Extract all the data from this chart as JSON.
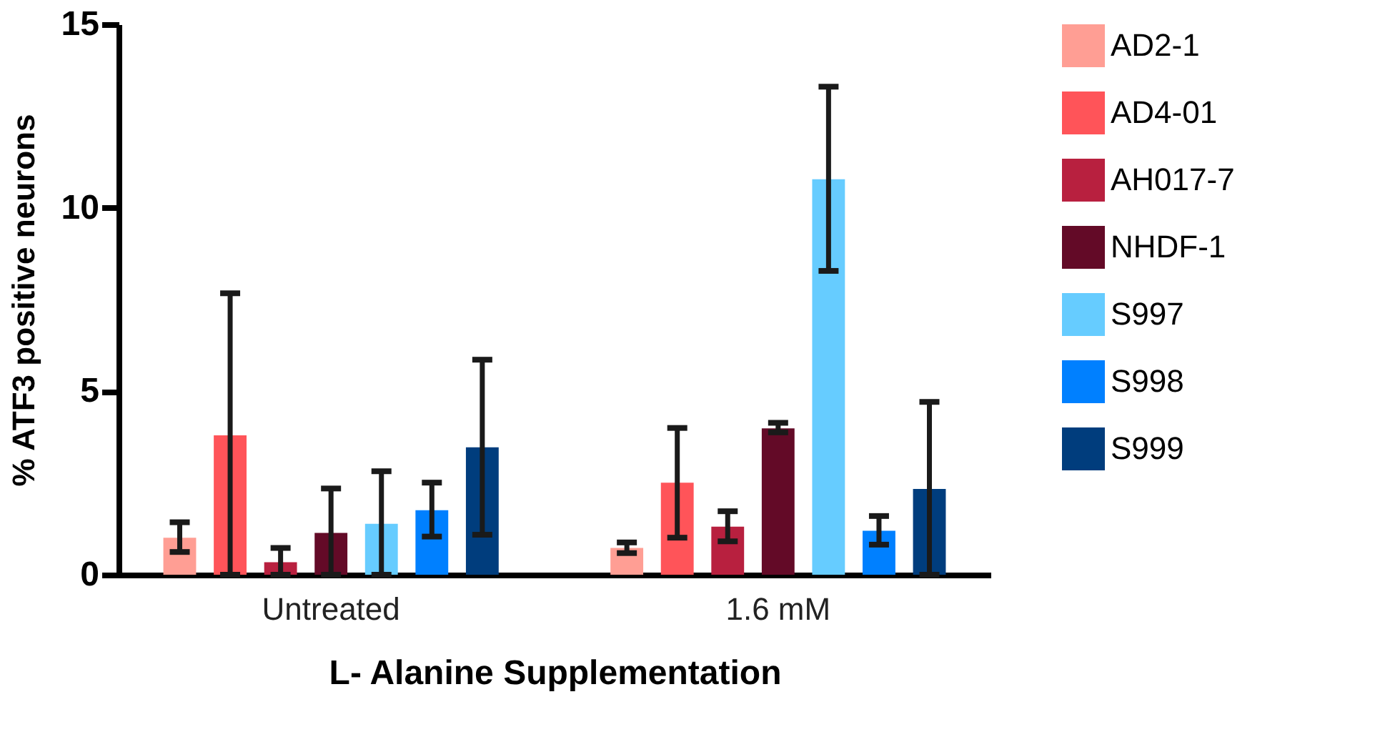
{
  "chart_data": {
    "type": "bar",
    "xlabel": "L- Alanine Supplementation",
    "ylabel": "% ATF3 positive neurons",
    "categories": [
      "Untreated",
      "1.6 mM"
    ],
    "series": [
      {
        "name": "AD2-1",
        "color": "#ff9e94",
        "values": [
          1.01,
          0.73
        ],
        "errors": [
          [
            0.62,
            1.43
          ],
          [
            0.59,
            0.88
          ]
        ]
      },
      {
        "name": "AD4-01",
        "color": "#ff5459",
        "values": [
          3.8,
          2.51
        ],
        "errors": [
          [
            0,
            7.67
          ],
          [
            1.01,
            4.0
          ]
        ]
      },
      {
        "name": "AH017-7",
        "color": "#b8203f",
        "values": [
          0.34,
          1.31
        ],
        "errors": [
          [
            0,
            0.73
          ],
          [
            0.91,
            1.73
          ]
        ]
      },
      {
        "name": "NHDF-1",
        "color": "#630a27",
        "values": [
          1.14,
          3.99
        ],
        "errors": [
          [
            0,
            2.35
          ],
          [
            3.88,
            4.14
          ]
        ]
      },
      {
        "name": "S997",
        "color": "#66ccff",
        "values": [
          1.39,
          10.78
        ],
        "errors": [
          [
            0,
            2.82
          ],
          [
            8.28,
            13.3
          ]
        ]
      },
      {
        "name": "S998",
        "color": "#0080ff",
        "values": [
          1.76,
          1.2
        ],
        "errors": [
          [
            1.04,
            2.51
          ],
          [
            0.82,
            1.6
          ]
        ]
      },
      {
        "name": "S999",
        "color": "#003d7d",
        "values": [
          3.47,
          2.34
        ],
        "errors": [
          [
            1.09,
            5.86
          ],
          [
            0,
            4.71
          ]
        ]
      }
    ],
    "ylim": [
      0,
      15
    ],
    "yticks": [
      0,
      5,
      10,
      15
    ],
    "grid": false,
    "legend": "right"
  }
}
